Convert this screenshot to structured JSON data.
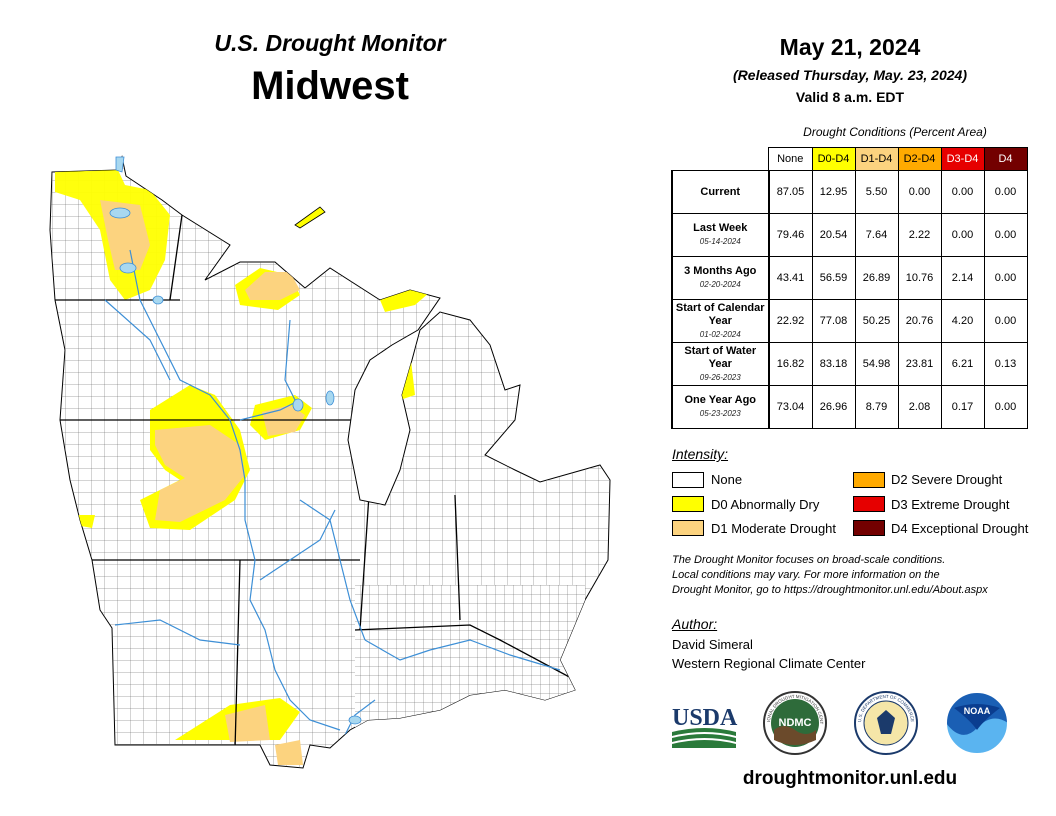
{
  "header": {
    "title_line1": "U.S. Drought Monitor",
    "title_line2": "Midwest",
    "date": "May 21, 2024",
    "released": "(Released Thursday, May. 23, 2024)",
    "valid": "Valid 8 a.m. EDT"
  },
  "table": {
    "caption": "Drought Conditions (Percent Area)",
    "columns": [
      {
        "label": "None",
        "color": "#ffffff",
        "text_color": "#000000"
      },
      {
        "label": "D0-D4",
        "color": "#ffff00",
        "text_color": "#000000"
      },
      {
        "label": "D1-D4",
        "color": "#fcd37f",
        "text_color": "#000000"
      },
      {
        "label": "D2-D4",
        "color": "#ffaa00",
        "text_color": "#000000"
      },
      {
        "label": "D3-D4",
        "color": "#e60000",
        "text_color": "#ffffff"
      },
      {
        "label": "D4",
        "color": "#730000",
        "text_color": "#ffffff"
      }
    ],
    "rows": [
      {
        "label": "Current",
        "date": "",
        "values": [
          "87.05",
          "12.95",
          "5.50",
          "0.00",
          "0.00",
          "0.00"
        ]
      },
      {
        "label": "Last Week",
        "date": "05-14-2024",
        "values": [
          "79.46",
          "20.54",
          "7.64",
          "2.22",
          "0.00",
          "0.00"
        ]
      },
      {
        "label": "3 Months Ago",
        "date": "02-20-2024",
        "values": [
          "43.41",
          "56.59",
          "26.89",
          "10.76",
          "2.14",
          "0.00"
        ]
      },
      {
        "label": "Start of Calendar Year",
        "date": "01-02-2024",
        "values": [
          "22.92",
          "77.08",
          "50.25",
          "20.76",
          "4.20",
          "0.00"
        ]
      },
      {
        "label": "Start of Water Year",
        "date": "09-26-2023",
        "values": [
          "16.82",
          "83.18",
          "54.98",
          "23.81",
          "6.21",
          "0.13"
        ]
      },
      {
        "label": "One Year Ago",
        "date": "05-23-2023",
        "values": [
          "73.04",
          "26.96",
          "8.79",
          "2.08",
          "0.17",
          "0.00"
        ]
      }
    ]
  },
  "legend": {
    "title": "Intensity:",
    "items": [
      {
        "label": "None",
        "color": "#ffffff"
      },
      {
        "label": "D0 Abnormally Dry",
        "color": "#ffff00"
      },
      {
        "label": "D1 Moderate Drought",
        "color": "#fcd37f"
      },
      {
        "label": "D2 Severe Drought",
        "color": "#ffaa00"
      },
      {
        "label": "D3 Extreme Drought",
        "color": "#e60000"
      },
      {
        "label": "D4 Exceptional Drought",
        "color": "#730000"
      }
    ]
  },
  "note": {
    "line1": "The Drought Monitor focuses on broad-scale conditions.",
    "line2": "Local conditions may vary. For more information on the",
    "line3": "Drought Monitor, go to https://droughtmonitor.unl.edu/About.aspx"
  },
  "author": {
    "title": "Author:",
    "name": "David Simeral",
    "org": "Western Regional Climate Center"
  },
  "logos": {
    "usda": "USDA",
    "ndmc": "NDMC",
    "noaa": "NOAA",
    "ndmc_ring": "NATIONAL DROUGHT MITIGATION CENTER",
    "doc_seal": "U.S. DEPARTMENT OF COMMERCE"
  },
  "website": "droughtmonitor.unl.edu",
  "map_colors": {
    "none": "#ffffff",
    "d0": "#ffff00",
    "d1": "#fcd37f",
    "water": "#a8d8f0",
    "river": "#3d8fd6"
  }
}
